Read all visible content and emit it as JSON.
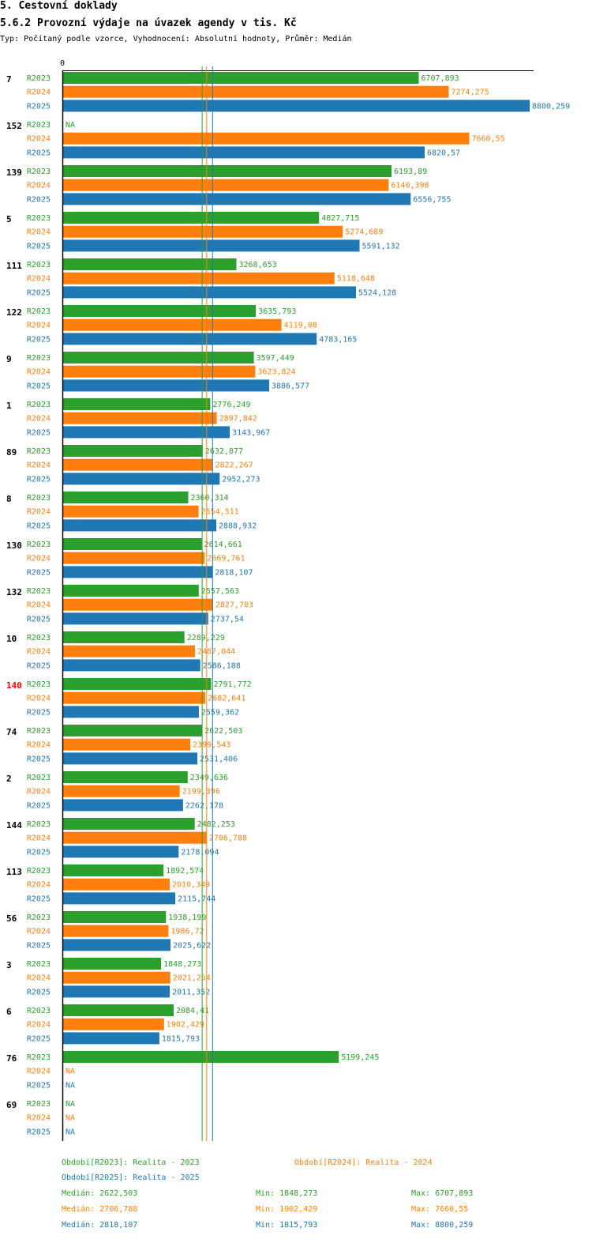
{
  "header": {
    "title": "5. Cestovní doklady",
    "subtitle": "5.6.2 Provozní výdaje na úvazek agendy v tis. Kč",
    "info": "Typ: Počítaný podle vzorce, Vyhodnocení: Absolutní hodnoty, Průměr: Medián"
  },
  "colors": {
    "R2023": "#2ca02c",
    "R2024": "#ff7f0e",
    "R2025": "#1f77b4",
    "highlight": "#ff0000",
    "axis": "#000000"
  },
  "chart_data": {
    "type": "bar",
    "orientation": "horizontal",
    "axis_zero_label": "0",
    "xlim": [
      0,
      8800.259
    ],
    "series_names": [
      "R2023",
      "R2024",
      "R2025"
    ],
    "na_label": "NA",
    "highlight_category": "140",
    "categories": [
      {
        "id": "7",
        "values": [
          "6707,893",
          "7274,275",
          "8800,259"
        ]
      },
      {
        "id": "152",
        "values": [
          "NA",
          "7660,55",
          "6820,57"
        ]
      },
      {
        "id": "139",
        "values": [
          "6193,89",
          "6140,398",
          "6556,755"
        ]
      },
      {
        "id": "5",
        "values": [
          "4827,715",
          "5274,689",
          "5591,132"
        ]
      },
      {
        "id": "111",
        "values": [
          "3268,653",
          "5118,648",
          "5524,128"
        ]
      },
      {
        "id": "122",
        "values": [
          "3635,793",
          "4119,08",
          "4783,165"
        ]
      },
      {
        "id": "9",
        "values": [
          "3597,449",
          "3623,824",
          "3886,577"
        ]
      },
      {
        "id": "1",
        "values": [
          "2776,249",
          "2897,842",
          "3143,967"
        ]
      },
      {
        "id": "89",
        "values": [
          "2632,877",
          "2822,267",
          "2952,273"
        ]
      },
      {
        "id": "8",
        "values": [
          "2360,314",
          "2554,511",
          "2888,932"
        ]
      },
      {
        "id": "130",
        "values": [
          "2614,661",
          "2669,761",
          "2818,107"
        ]
      },
      {
        "id": "132",
        "values": [
          "2557,563",
          "2827,703",
          "2737,54"
        ]
      },
      {
        "id": "10",
        "values": [
          "2289,229",
          "2487,044",
          "2586,188"
        ]
      },
      {
        "id": "140",
        "values": [
          "2791,772",
          "2682,641",
          "2559,362"
        ]
      },
      {
        "id": "74",
        "values": [
          "2622,503",
          "2399,543",
          "2531,406"
        ]
      },
      {
        "id": "2",
        "values": [
          "2349,636",
          "2199,396",
          "2262,178"
        ]
      },
      {
        "id": "144",
        "values": [
          "2482,253",
          "2706,788",
          "2178,094"
        ]
      },
      {
        "id": "113",
        "values": [
          "1892,574",
          "2010,349",
          "2115,744"
        ]
      },
      {
        "id": "56",
        "values": [
          "1938,199",
          "1986,72",
          "2025,622"
        ]
      },
      {
        "id": "3",
        "values": [
          "1848,273",
          "2021,254",
          "2011,352"
        ]
      },
      {
        "id": "6",
        "values": [
          "2084,41",
          "1902,429",
          "1815,793"
        ]
      },
      {
        "id": "76",
        "values": [
          "5199,245",
          "NA",
          "NA"
        ]
      },
      {
        "id": "69",
        "values": [
          "NA",
          "NA",
          "NA"
        ]
      }
    ],
    "medians": [
      2622.503,
      2706.788,
      2818.107
    ]
  },
  "legend": {
    "period_2023": "Období[R2023]: Realita - 2023",
    "period_2024": "Období[R2024]: Realita - 2024",
    "period_2025": "Období[R2025]: Realita - 2025",
    "stats": [
      {
        "median": "Medián: 2622,503",
        "min": "Min: 1848,273",
        "max": "Max: 6707,893"
      },
      {
        "median": "Medián: 2706,788",
        "min": "Min: 1902,429",
        "max": "Max: 7660,55"
      },
      {
        "median": "Medián: 2818,107",
        "min": "Min: 1815,793",
        "max": "Max: 8800,259"
      }
    ]
  }
}
